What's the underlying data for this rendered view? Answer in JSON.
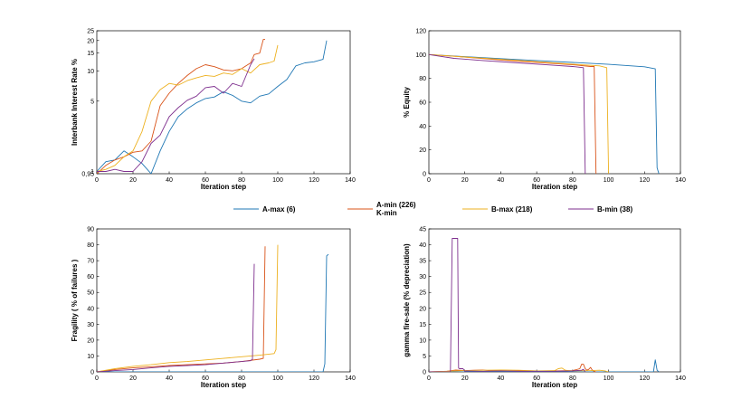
{
  "colors": {
    "A-max": "#1f77b4",
    "A-min": "#d95319",
    "B-max": "#edb120",
    "B-min": "#7e2f8e"
  },
  "legend": [
    {
      "key": "A-max",
      "label": "A-max (6)"
    },
    {
      "key": "A-min",
      "label": "A-min (226)",
      "sublabel": "K-min"
    },
    {
      "key": "B-max",
      "label": "B-max (218)"
    },
    {
      "key": "B-min",
      "label": "B-min (38)"
    }
  ],
  "chart_data": [
    {
      "id": "interest",
      "type": "line",
      "xlabel": "Iteration step",
      "ylabel": "Interbank Interest Rate %",
      "xlim": [
        0,
        140
      ],
      "ylim": [
        0.95,
        25
      ],
      "yscale": "log",
      "xticks": [
        0,
        20,
        40,
        60,
        80,
        100,
        120,
        140
      ],
      "yticks": [
        0.95,
        1,
        5,
        10,
        15,
        20,
        25
      ],
      "yticklabels": [
        "0,95",
        "1",
        "5",
        "10",
        "15",
        "20",
        "25"
      ],
      "series": [
        {
          "key": "A-max",
          "x": [
            0,
            5,
            10,
            15,
            20,
            25,
            30,
            35,
            40,
            45,
            50,
            55,
            60,
            65,
            70,
            75,
            80,
            85,
            90,
            95,
            100,
            105,
            110,
            115,
            120,
            125,
            127
          ],
          "y": [
            1.0,
            1.25,
            1.3,
            1.6,
            1.4,
            1.2,
            0.85,
            1.6,
            2.5,
            3.5,
            4.2,
            4.8,
            5.3,
            5.5,
            6.2,
            5.7,
            5.0,
            4.8,
            5.6,
            5.9,
            7.0,
            8.2,
            11.2,
            12.0,
            12.3,
            13.0,
            20
          ]
        },
        {
          "key": "A-min",
          "x": [
            0,
            5,
            10,
            15,
            20,
            25,
            30,
            35,
            40,
            45,
            50,
            55,
            60,
            65,
            70,
            75,
            80,
            85,
            87,
            90,
            92,
            93
          ],
          "y": [
            0.9,
            1.15,
            1.3,
            1.4,
            1.55,
            1.6,
            2.0,
            4.5,
            6.0,
            7.5,
            9.0,
            10.5,
            11.5,
            11.0,
            10.2,
            10.0,
            10.5,
            12.0,
            14.5,
            15.0,
            20.5,
            20.5
          ]
        },
        {
          "key": "B-max",
          "x": [
            0,
            5,
            10,
            15,
            20,
            25,
            30,
            35,
            40,
            45,
            50,
            55,
            60,
            65,
            70,
            75,
            80,
            85,
            90,
            95,
            98,
            100
          ],
          "y": [
            1.0,
            1.05,
            1.15,
            1.4,
            1.6,
            2.5,
            5.0,
            6.5,
            7.5,
            7.2,
            8.0,
            8.5,
            9.0,
            8.8,
            9.5,
            9.2,
            10.5,
            9.5,
            11.5,
            12.0,
            12.5,
            18.0
          ]
        },
        {
          "key": "B-min",
          "x": [
            0,
            5,
            10,
            15,
            20,
            25,
            30,
            35,
            40,
            45,
            50,
            55,
            60,
            65,
            70,
            75,
            80,
            85,
            87
          ],
          "y": [
            1.0,
            1.0,
            1.05,
            1.0,
            1.0,
            1.25,
            1.9,
            2.3,
            3.5,
            4.3,
            5.1,
            5.6,
            6.8,
            7.0,
            6.0,
            7.5,
            7.0,
            11.5,
            13.2
          ]
        }
      ]
    },
    {
      "id": "equity",
      "type": "line",
      "xlabel": "Iteration step",
      "ylabel": "% Equity",
      "xlim": [
        0,
        140
      ],
      "ylim": [
        0,
        120
      ],
      "xticks": [
        0,
        20,
        40,
        60,
        80,
        100,
        120,
        140
      ],
      "yticks": [
        0,
        20,
        40,
        60,
        80,
        100,
        120
      ],
      "series": [
        {
          "key": "A-max",
          "x": [
            0,
            20,
            40,
            60,
            80,
            100,
            120,
            126,
            127,
            128
          ],
          "y": [
            100,
            98.3,
            96.6,
            95,
            93.4,
            91.8,
            89.8,
            88,
            5,
            0
          ]
        },
        {
          "key": "A-min",
          "x": [
            0,
            15,
            40,
            60,
            80,
            90,
            92,
            93
          ],
          "y": [
            100,
            98.5,
            95.5,
            93.5,
            91.5,
            90,
            90,
            0
          ]
        },
        {
          "key": "B-max",
          "x": [
            0,
            20,
            40,
            60,
            80,
            95,
            99,
            100
          ],
          "y": [
            100,
            98,
            96,
            94,
            92,
            90.5,
            89,
            0
          ]
        },
        {
          "key": "B-min",
          "x": [
            0,
            14,
            30,
            50,
            70,
            80,
            86,
            87
          ],
          "y": [
            100,
            96.8,
            95,
            93,
            91,
            90,
            89,
            0
          ]
        }
      ]
    },
    {
      "id": "fragility",
      "type": "line",
      "xlabel": "Iteration step",
      "ylabel": "Fragility  ( % of failures )",
      "xlim": [
        0,
        140
      ],
      "ylim": [
        0,
        90
      ],
      "xticks": [
        0,
        20,
        40,
        60,
        80,
        100,
        120,
        140
      ],
      "yticks": [
        0,
        10,
        20,
        30,
        40,
        50,
        60,
        70,
        80,
        90
      ],
      "series": [
        {
          "key": "A-max",
          "x": [
            0,
            20,
            40,
            60,
            80,
            100,
            120,
            125,
            126,
            127,
            128
          ],
          "y": [
            0,
            0,
            0,
            0,
            0,
            0,
            0,
            0,
            5,
            73,
            74
          ]
        },
        {
          "key": "A-min",
          "x": [
            0,
            10,
            20,
            30,
            40,
            50,
            60,
            70,
            80,
            90,
            92,
            93
          ],
          "y": [
            0,
            1.5,
            2.5,
            3.2,
            4.0,
            4.5,
            5.0,
            5.5,
            6.5,
            8.0,
            8.5,
            79
          ]
        },
        {
          "key": "B-max",
          "x": [
            0,
            10,
            20,
            30,
            40,
            50,
            60,
            70,
            80,
            90,
            98,
            99,
            100
          ],
          "y": [
            0,
            2.0,
            3.5,
            4.5,
            5.8,
            6.5,
            7.5,
            8.5,
            9.5,
            10.5,
            11.5,
            14,
            80
          ]
        },
        {
          "key": "B-min",
          "x": [
            0,
            10,
            20,
            30,
            40,
            50,
            60,
            70,
            80,
            85,
            86,
            87
          ],
          "y": [
            0,
            0.8,
            1.5,
            2.5,
            3.5,
            4.0,
            4.5,
            5.5,
            6.5,
            7.0,
            8.0,
            68
          ]
        }
      ]
    },
    {
      "id": "firesale",
      "type": "line",
      "xlabel": "Iteration step",
      "ylabel": "gamma fire-sale (% depreciation)",
      "xlim": [
        0,
        140
      ],
      "ylim": [
        0,
        45
      ],
      "xticks": [
        0,
        20,
        40,
        60,
        80,
        100,
        120,
        140
      ],
      "yticks": [
        0,
        5,
        10,
        15,
        20,
        25,
        30,
        35,
        40,
        45
      ],
      "series": [
        {
          "key": "A-max",
          "x": [
            0,
            20,
            40,
            60,
            80,
            100,
            120,
            125,
            126,
            127,
            128
          ],
          "y": [
            0,
            0,
            0,
            0,
            0,
            0,
            0,
            0,
            3.8,
            0.5,
            0
          ]
        },
        {
          "key": "A-min",
          "x": [
            0,
            10,
            15,
            20,
            25,
            30,
            35,
            40,
            50,
            60,
            70,
            80,
            84,
            85,
            86,
            87,
            88,
            89,
            90,
            91,
            92,
            93
          ],
          "y": [
            0,
            0.2,
            0.6,
            0.4,
            0.5,
            0.6,
            0.3,
            0.5,
            0.4,
            0.3,
            0.3,
            0.4,
            1.0,
            2.4,
            2.4,
            1.0,
            0.5,
            0.8,
            1.4,
            0.5,
            0.2,
            0
          ]
        },
        {
          "key": "B-max",
          "x": [
            0,
            10,
            20,
            30,
            40,
            50,
            60,
            70,
            72,
            74,
            76,
            80,
            90,
            95,
            98,
            100
          ],
          "y": [
            0,
            0.2,
            0.4,
            0.5,
            0.6,
            0.5,
            0.3,
            0.4,
            1.0,
            1.2,
            0.5,
            0.3,
            0.4,
            0.5,
            0.3,
            0
          ]
        },
        {
          "key": "B-min",
          "x": [
            0,
            12,
            13,
            13.5,
            16,
            16.5,
            17,
            19,
            20,
            21,
            30,
            40,
            50,
            60,
            70,
            80,
            85,
            86,
            87
          ],
          "y": [
            0,
            0,
            42,
            42,
            42,
            1.2,
            1.0,
            1.0,
            0.2,
            0.3,
            0.2,
            0.3,
            0.2,
            0.2,
            0.2,
            0.3,
            0.5,
            0.8,
            0
          ]
        }
      ]
    }
  ]
}
